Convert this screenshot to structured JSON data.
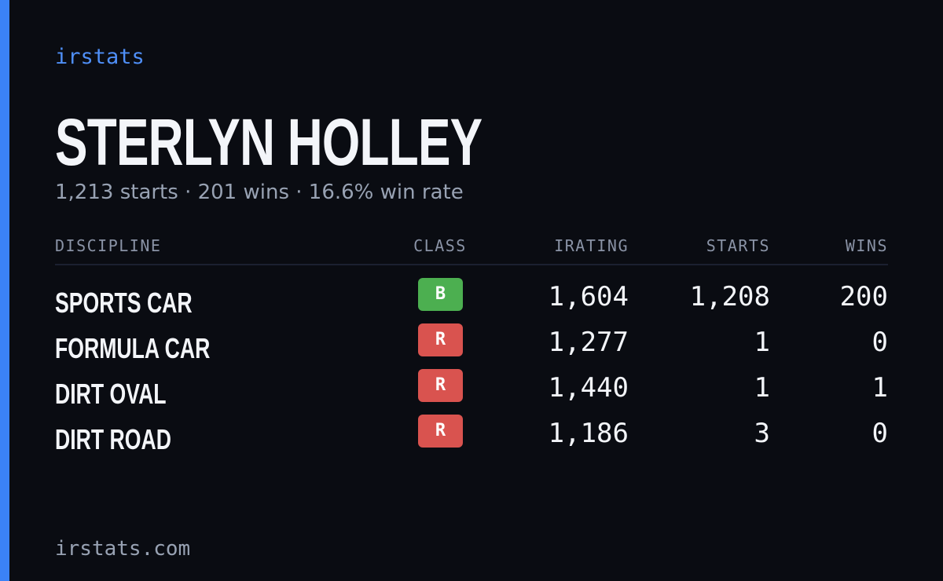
{
  "brand": "irstats",
  "name": "STERLYN HOLLEY",
  "summary": "1,213 starts · 201 wins · 16.6% win rate",
  "table": {
    "headers": [
      "DISCIPLINE",
      "CLASS",
      "IRATING",
      "STARTS",
      "WINS"
    ],
    "rows": [
      {
        "discipline": "SPORTS CAR",
        "class": "B",
        "class_color": "#4caf50",
        "irating": "1,604",
        "starts": "1,208",
        "wins": "200"
      },
      {
        "discipline": "FORMULA CAR",
        "class": "R",
        "class_color": "#d9534f",
        "irating": "1,277",
        "starts": "1",
        "wins": "0"
      },
      {
        "discipline": "DIRT OVAL",
        "class": "R",
        "class_color": "#d9534f",
        "irating": "1,440",
        "starts": "1",
        "wins": "1"
      },
      {
        "discipline": "DIRT ROAD",
        "class": "R",
        "class_color": "#d9534f",
        "irating": "1,186",
        "starts": "3",
        "wins": "0"
      }
    ]
  },
  "footer": "irstats.com"
}
